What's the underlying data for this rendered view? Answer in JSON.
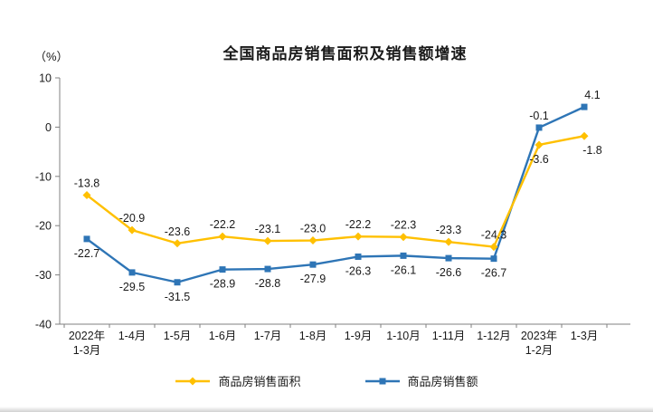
{
  "page": {
    "background": "#ffffff"
  },
  "chart_data": {
    "type": "line",
    "title": "全国商品房销售面积及销售额增速",
    "unit_label": "（%）",
    "categories": [
      "2022年\n1-3月",
      "1-4月",
      "1-5月",
      "1-6月",
      "1-7月",
      "1-8月",
      "1-9月",
      "1-10月",
      "1-11月",
      "1-12月",
      "2023年\n1-2月",
      "1-3月"
    ],
    "series": [
      {
        "name": "商品房销售面积",
        "color": "#FFC000",
        "marker": "diamond",
        "values": [
          -13.8,
          -20.9,
          -23.6,
          -22.2,
          -23.1,
          -23.0,
          -22.2,
          -22.3,
          -23.3,
          -24.3,
          -3.6,
          -1.8
        ],
        "label_sides": [
          "above",
          "above",
          "above",
          "above",
          "above",
          "above",
          "above",
          "above",
          "above",
          "above",
          "below",
          "below"
        ]
      },
      {
        "name": "商品房销售额",
        "color": "#2E75B6",
        "marker": "square",
        "values": [
          -22.7,
          -29.5,
          -31.5,
          -28.9,
          -28.8,
          -27.9,
          -26.3,
          -26.1,
          -26.6,
          -26.7,
          -0.1,
          4.1
        ],
        "label_sides": [
          "below",
          "below",
          "below",
          "below",
          "below",
          "below",
          "below",
          "below",
          "below",
          "below",
          "above",
          "above"
        ]
      }
    ],
    "ylim": [
      -40,
      10
    ],
    "yticks": [
      10,
      0,
      -10,
      -20,
      -30,
      -40
    ],
    "grid": false,
    "legend_position": "bottom",
    "axis_color": "#808080",
    "text_color": "#1a1a1a",
    "label_color": "#1a1a1a"
  }
}
